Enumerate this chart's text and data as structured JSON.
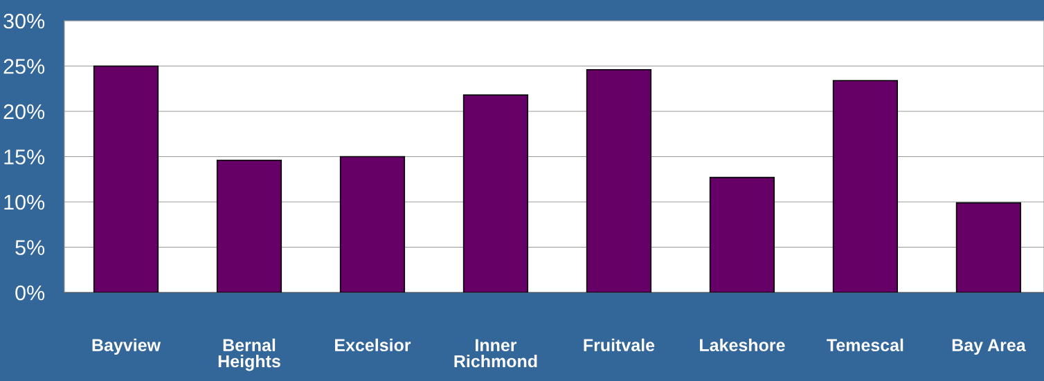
{
  "chart_data": {
    "type": "bar",
    "categories": [
      "Bayview",
      "Bernal\nHeights",
      "Excelsior",
      "Inner\nRichmond",
      "Fruitvale",
      "Lakeshore",
      "Temescal",
      "Bay Area"
    ],
    "values": [
      25.0,
      14.6,
      15.0,
      21.8,
      24.6,
      12.7,
      23.4,
      9.9
    ],
    "color": "#660066",
    "ylim": [
      0,
      30
    ],
    "yticks": [
      {
        "value": 0,
        "label": "0%"
      },
      {
        "value": 5,
        "label": "5%"
      },
      {
        "value": 10,
        "label": "10%"
      },
      {
        "value": 15,
        "label": "15%"
      },
      {
        "value": 20,
        "label": "20%"
      },
      {
        "value": 25,
        "label": "25%"
      },
      {
        "value": 30,
        "label": "30%"
      }
    ],
    "grid": "y"
  }
}
